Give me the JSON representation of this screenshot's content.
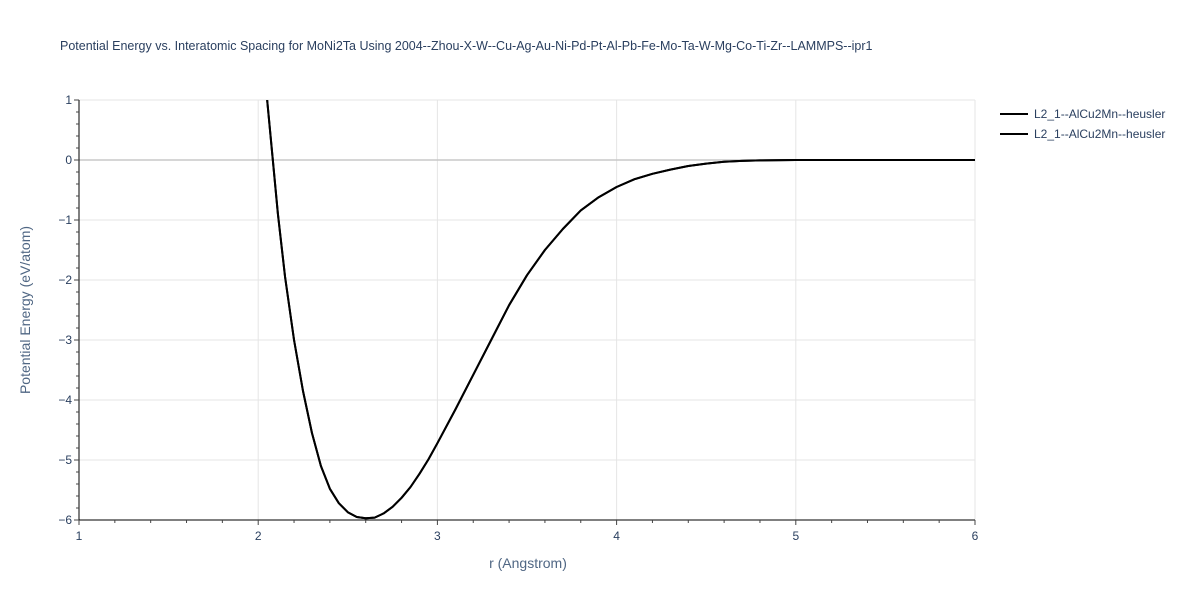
{
  "chart_data": {
    "type": "line",
    "title": "Potential Energy vs. Interatomic Spacing for MoNi2Ta Using 2004--Zhou-X-W--Cu-Ag-Au-Ni-Pd-Pt-Al-Pb-Fe-Mo-Ta-W-Mg-Co-Ti-Zr--LAMMPS--ipr1",
    "xlabel": "r (Angstrom)",
    "ylabel": "Potential Energy (eV/atom)",
    "xlim": [
      1,
      6
    ],
    "ylim": [
      -6,
      1
    ],
    "xticks": [
      1,
      2,
      3,
      4,
      5,
      6
    ],
    "xtick_labels": [
      "1",
      "2",
      "3",
      "4",
      "5",
      "6"
    ],
    "yticks": [
      1,
      0,
      -1,
      -2,
      -3,
      -4,
      -5,
      -6
    ],
    "ytick_labels": [
      "1",
      "0",
      "−1",
      "−2",
      "−3",
      "−4",
      "−5",
      "−6"
    ],
    "grid": true,
    "legend_position": "top-right",
    "series": [
      {
        "name": "L2_1--AlCu2Mn--heusler",
        "color": "#000000",
        "x": [
          2.05,
          2.08,
          2.11,
          2.15,
          2.2,
          2.25,
          2.3,
          2.35,
          2.4,
          2.45,
          2.5,
          2.55,
          2.6,
          2.65,
          2.7,
          2.75,
          2.8,
          2.85,
          2.9,
          2.95,
          3.0,
          3.1,
          3.2,
          3.3,
          3.4,
          3.5,
          3.6,
          3.7,
          3.8,
          3.9,
          4.0,
          4.1,
          4.2,
          4.3,
          4.4,
          4.5,
          4.6,
          4.7,
          4.8,
          5.0,
          5.5,
          6.0
        ],
        "y": [
          1.0,
          0.05,
          -0.9,
          -1.95,
          -3.0,
          -3.85,
          -4.55,
          -5.1,
          -5.48,
          -5.72,
          -5.87,
          -5.95,
          -5.97,
          -5.96,
          -5.89,
          -5.78,
          -5.63,
          -5.45,
          -5.23,
          -4.99,
          -4.72,
          -4.16,
          -3.58,
          -3.0,
          -2.42,
          -1.92,
          -1.5,
          -1.15,
          -0.84,
          -0.62,
          -0.45,
          -0.32,
          -0.23,
          -0.16,
          -0.1,
          -0.06,
          -0.03,
          -0.015,
          -0.006,
          0.0,
          0.0,
          0.0
        ]
      },
      {
        "name": "L2_1--AlCu2Mn--heusler",
        "color": "#000000",
        "x": [
          2.05,
          2.08,
          2.11,
          2.15,
          2.2,
          2.25,
          2.3,
          2.35,
          2.4,
          2.45,
          2.5,
          2.55,
          2.6,
          2.65,
          2.7,
          2.75,
          2.8,
          2.85,
          2.9,
          2.95,
          3.0,
          3.1,
          3.2,
          3.3,
          3.4,
          3.5,
          3.6,
          3.7,
          3.8,
          3.9,
          4.0,
          4.1,
          4.2,
          4.3,
          4.4,
          4.5,
          4.6,
          4.7,
          4.8,
          5.0,
          5.5,
          6.0
        ],
        "y": [
          1.0,
          0.05,
          -0.9,
          -1.95,
          -3.0,
          -3.85,
          -4.55,
          -5.1,
          -5.48,
          -5.72,
          -5.87,
          -5.95,
          -5.97,
          -5.96,
          -5.89,
          -5.78,
          -5.63,
          -5.45,
          -5.23,
          -4.99,
          -4.72,
          -4.16,
          -3.58,
          -3.0,
          -2.42,
          -1.92,
          -1.5,
          -1.15,
          -0.84,
          -0.62,
          -0.45,
          -0.32,
          -0.23,
          -0.16,
          -0.1,
          -0.06,
          -0.03,
          -0.015,
          -0.006,
          0.0,
          0.0,
          0.0
        ]
      }
    ]
  }
}
